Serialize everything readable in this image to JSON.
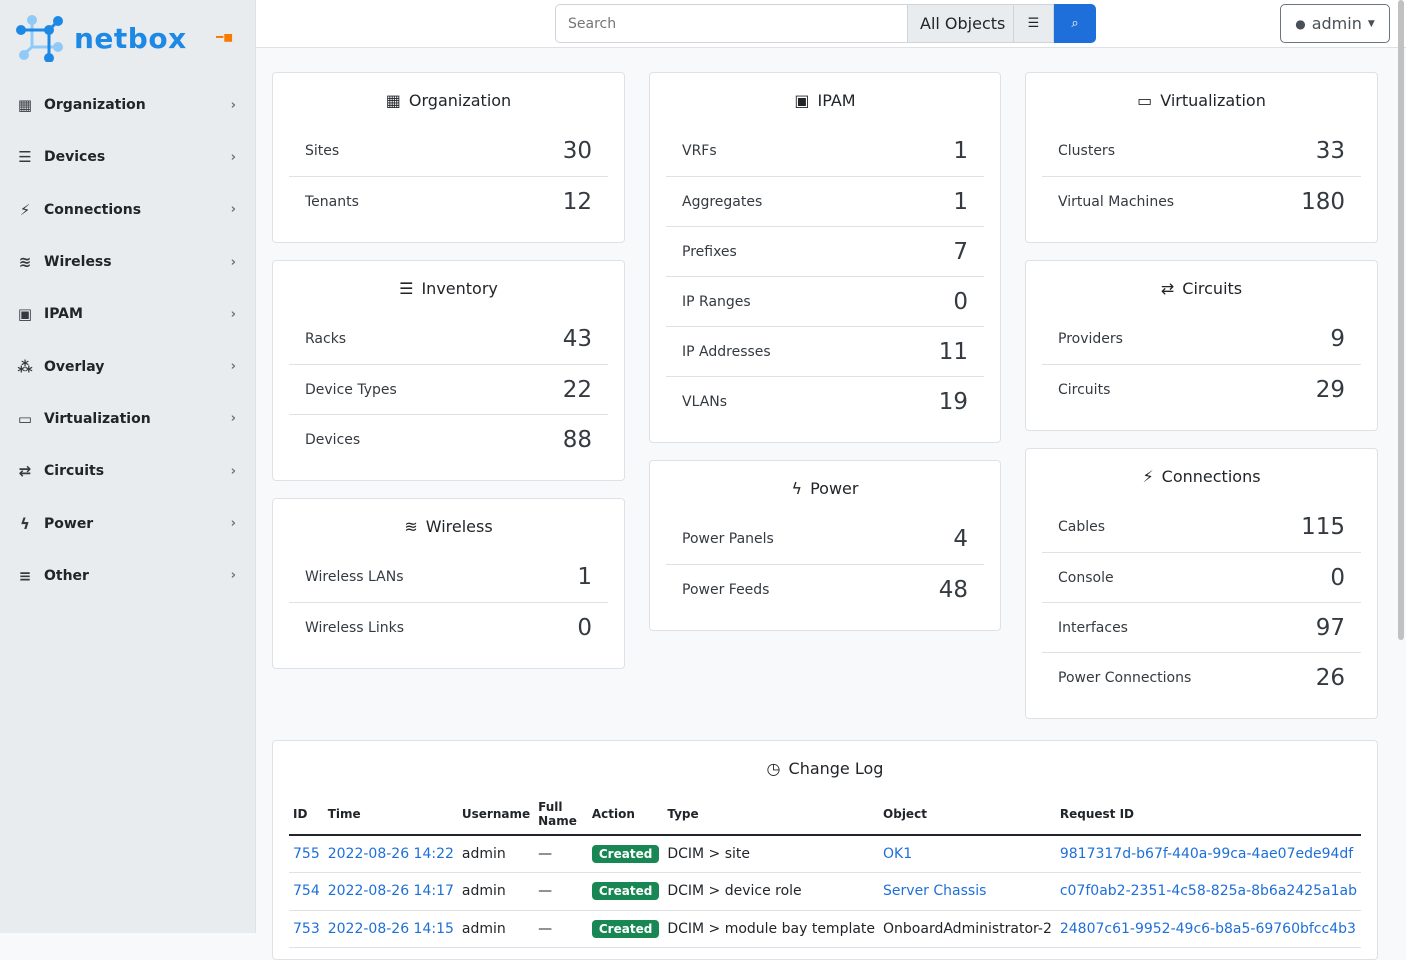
{
  "brand": {
    "name": "netbox",
    "accent": "#1e88e5"
  },
  "sidebar": {
    "items": [
      {
        "label": "Organization",
        "icon": "building-icon",
        "glyph": "▦"
      },
      {
        "label": "Devices",
        "icon": "server-icon",
        "glyph": "☰"
      },
      {
        "label": "Connections",
        "icon": "plug-icon",
        "glyph": "⚡"
      },
      {
        "label": "Wireless",
        "icon": "wifi-icon",
        "glyph": "≋"
      },
      {
        "label": "IPAM",
        "icon": "counter-icon",
        "glyph": "▣"
      },
      {
        "label": "Overlay",
        "icon": "graph-icon",
        "glyph": "⁂"
      },
      {
        "label": "Virtualization",
        "icon": "monitor-icon",
        "glyph": "▭"
      },
      {
        "label": "Circuits",
        "icon": "transit-icon",
        "glyph": "⇄"
      },
      {
        "label": "Power",
        "icon": "flash-icon",
        "glyph": "ϟ"
      },
      {
        "label": "Other",
        "icon": "notes-icon",
        "glyph": "≡"
      }
    ]
  },
  "header": {
    "search_placeholder": "Search",
    "scope": "All Objects",
    "user": "admin"
  },
  "columns": [
    [
      {
        "title": "Organization",
        "icon": "building-icon",
        "glyph": "▦",
        "rows": [
          [
            "Sites",
            "30"
          ],
          [
            "Tenants",
            "12"
          ]
        ]
      },
      {
        "title": "Inventory",
        "icon": "server-icon",
        "glyph": "☰",
        "rows": [
          [
            "Racks",
            "43"
          ],
          [
            "Device Types",
            "22"
          ],
          [
            "Devices",
            "88"
          ]
        ]
      },
      {
        "title": "Wireless",
        "icon": "wifi-icon",
        "glyph": "≋",
        "rows": [
          [
            "Wireless LANs",
            "1"
          ],
          [
            "Wireless Links",
            "0"
          ]
        ]
      }
    ],
    [
      {
        "title": "IPAM",
        "icon": "counter-icon",
        "glyph": "▣",
        "rows": [
          [
            "VRFs",
            "1"
          ],
          [
            "Aggregates",
            "1"
          ],
          [
            "Prefixes",
            "7"
          ],
          [
            "IP Ranges",
            "0"
          ],
          [
            "IP Addresses",
            "11"
          ],
          [
            "VLANs",
            "19"
          ]
        ]
      },
      {
        "title": "Power",
        "icon": "flash-icon",
        "glyph": "ϟ",
        "rows": [
          [
            "Power Panels",
            "4"
          ],
          [
            "Power Feeds",
            "48"
          ]
        ]
      }
    ],
    [
      {
        "title": "Virtualization",
        "icon": "monitor-icon",
        "glyph": "▭",
        "rows": [
          [
            "Clusters",
            "33"
          ],
          [
            "Virtual Machines",
            "180"
          ]
        ]
      },
      {
        "title": "Circuits",
        "icon": "transit-icon",
        "glyph": "⇄",
        "rows": [
          [
            "Providers",
            "9"
          ],
          [
            "Circuits",
            "29"
          ]
        ]
      },
      {
        "title": "Connections",
        "icon": "plug-icon",
        "glyph": "⚡",
        "rows": [
          [
            "Cables",
            "115"
          ],
          [
            "Console",
            "0"
          ],
          [
            "Interfaces",
            "97"
          ],
          [
            "Power Connections",
            "26"
          ]
        ]
      }
    ]
  ],
  "changelog": {
    "title": "Change Log",
    "columns": [
      "ID",
      "Time",
      "Username",
      "Full Name",
      "Action",
      "Type",
      "Object",
      "Request ID"
    ],
    "rows": [
      {
        "id": "755",
        "time": "2022-08-26 14:22",
        "user": "admin",
        "full": "—",
        "action": "Created",
        "type": "DCIM > site",
        "object": "OK1",
        "object_link": true,
        "req": "9817317d-b67f-440a-99ca-4ae07ede94df"
      },
      {
        "id": "754",
        "time": "2022-08-26 14:17",
        "user": "admin",
        "full": "—",
        "action": "Created",
        "type": "DCIM > device role",
        "object": "Server Chassis",
        "object_link": true,
        "req": "c07f0ab2-2351-4c58-825a-8b6a2425a1ab"
      },
      {
        "id": "753",
        "time": "2022-08-26 14:15",
        "user": "admin",
        "full": "—",
        "action": "Created",
        "type": "DCIM > module bay template",
        "object": "OnboardAdministrator-2",
        "object_link": false,
        "req": "24807c61-9952-49c6-b8a5-69760bfcc4b3"
      }
    ]
  }
}
